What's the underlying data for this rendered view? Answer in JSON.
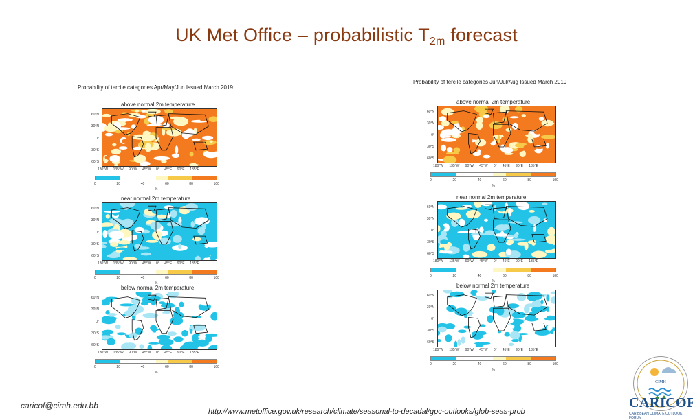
{
  "slide": {
    "title_main": "UK Met Office – probabilistic T",
    "title_sub": "2m",
    "title_end": " forecast",
    "footer_email": "caricof@cimh.edu.bb",
    "footer_url": "http://www.metoffice.gov.uk/research/climate/seasonal-to-decadal/gpc-outlooks/glob-seas-prob"
  },
  "panels": [
    {
      "title": "Probability of tercile categories Apr/May/Jun Issued March 2019",
      "maps": [
        {
          "label": "above normal 2m temperature",
          "category": "above"
        },
        {
          "label": "near normal 2m temperature",
          "category": "near"
        },
        {
          "label": "below normal 2m temperature",
          "category": "below"
        }
      ]
    },
    {
      "title": "Probability of tercile categories Jun/Jul/Aug Issued March 2019",
      "maps": [
        {
          "label": "above normal 2m temperature",
          "category": "above"
        },
        {
          "label": "near normal 2m temperature",
          "category": "near"
        },
        {
          "label": "below normal 2m temperature",
          "category": "below"
        }
      ]
    }
  ],
  "axes": {
    "lat_labels": [
      "60°N",
      "30°N",
      "0°",
      "30°S",
      "60°S"
    ],
    "lon_labels": [
      "180°W",
      "135°W",
      "90°W",
      "45°W",
      "0°",
      "45°E",
      "90°E",
      "135°E"
    ],
    "colorbar_ticks": [
      "0",
      "20",
      "40",
      "60",
      "80",
      "100"
    ],
    "colorbar_unit": "%"
  },
  "colors": {
    "title": "#8a3a10",
    "ocean_white": "#ffffff",
    "cyan": "#22c3e6",
    "light_cyan": "#a8e6f5",
    "pale_yellow": "#fff7c2",
    "yellow": "#f7c948",
    "orange": "#f47a20"
  },
  "logos": {
    "cimh": "CIMH",
    "caricof": "CARICOF",
    "caricof_tagline": "CARIBBEAN CLIMATE OUTLOOK FORUM"
  }
}
